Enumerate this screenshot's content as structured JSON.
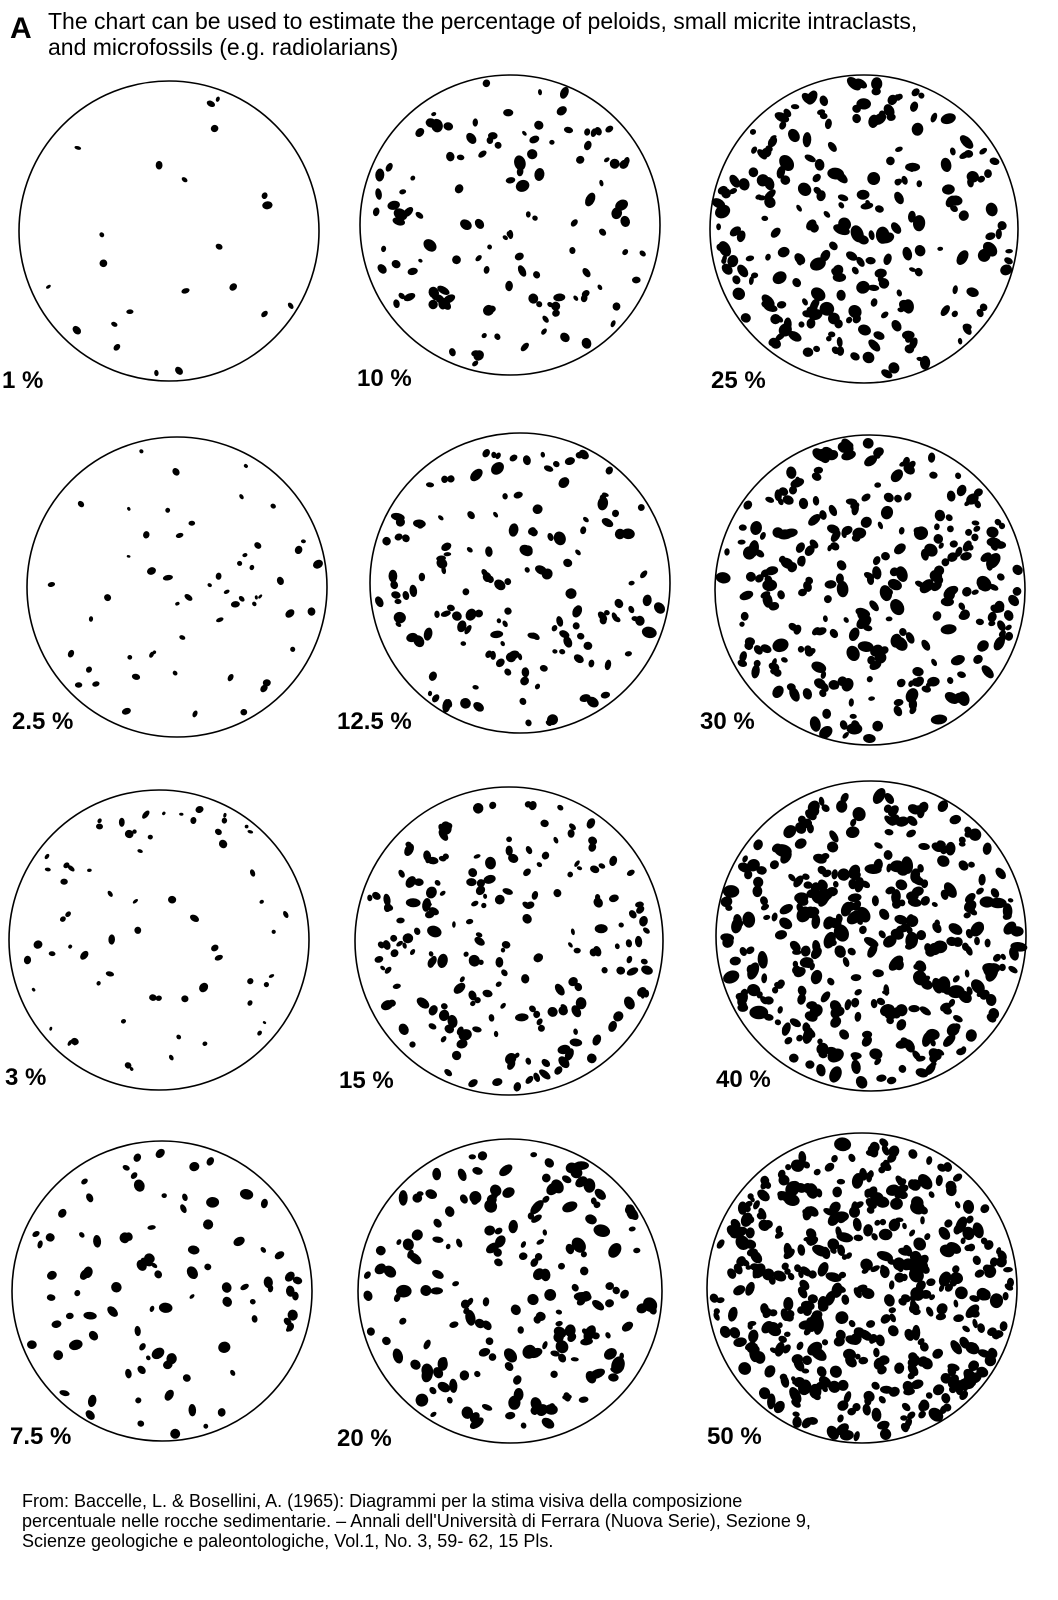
{
  "header": {
    "panel_letter": "A",
    "line1": "The chart can be used to estimate the percentage of peloids, small  micrite intraclasts,",
    "line2": "and microfossils (e.g. radiolarians)"
  },
  "chart_data": {
    "type": "comparison-chart",
    "panels": [
      {
        "label": "1 %",
        "percent": 1
      },
      {
        "label": "10 %",
        "percent": 10
      },
      {
        "label": "25 %",
        "percent": 25
      },
      {
        "label": "2.5 %",
        "percent": 2.5
      },
      {
        "label": "12.5 %",
        "percent": 12.5
      },
      {
        "label": "30 %",
        "percent": 30
      },
      {
        "label": "3 %",
        "percent": 3
      },
      {
        "label": "15 %",
        "percent": 15
      },
      {
        "label": "40 %",
        "percent": 40
      },
      {
        "label": "7.5 %",
        "percent": 7.5
      },
      {
        "label": "20 %",
        "percent": 20
      },
      {
        "label": "50 %",
        "percent": 50
      }
    ],
    "colors": {
      "grain": "#000000",
      "circle_stroke": "#000000",
      "background": "#ffffff"
    }
  },
  "footer": {
    "line1": "From: Baccelle, L. & Bosellini, A.  (1965): Diagrammi per la stima visiva della composizione",
    "line2": "percentuale nelle rocche sedimentarie. – Annali dell'Università di Ferrara (Nuova Serie), Sezione 9,",
    "line3": "Scienze geologiche e paleontologiche, Vol.1, No. 3, 59- 62, 15 Pls."
  }
}
